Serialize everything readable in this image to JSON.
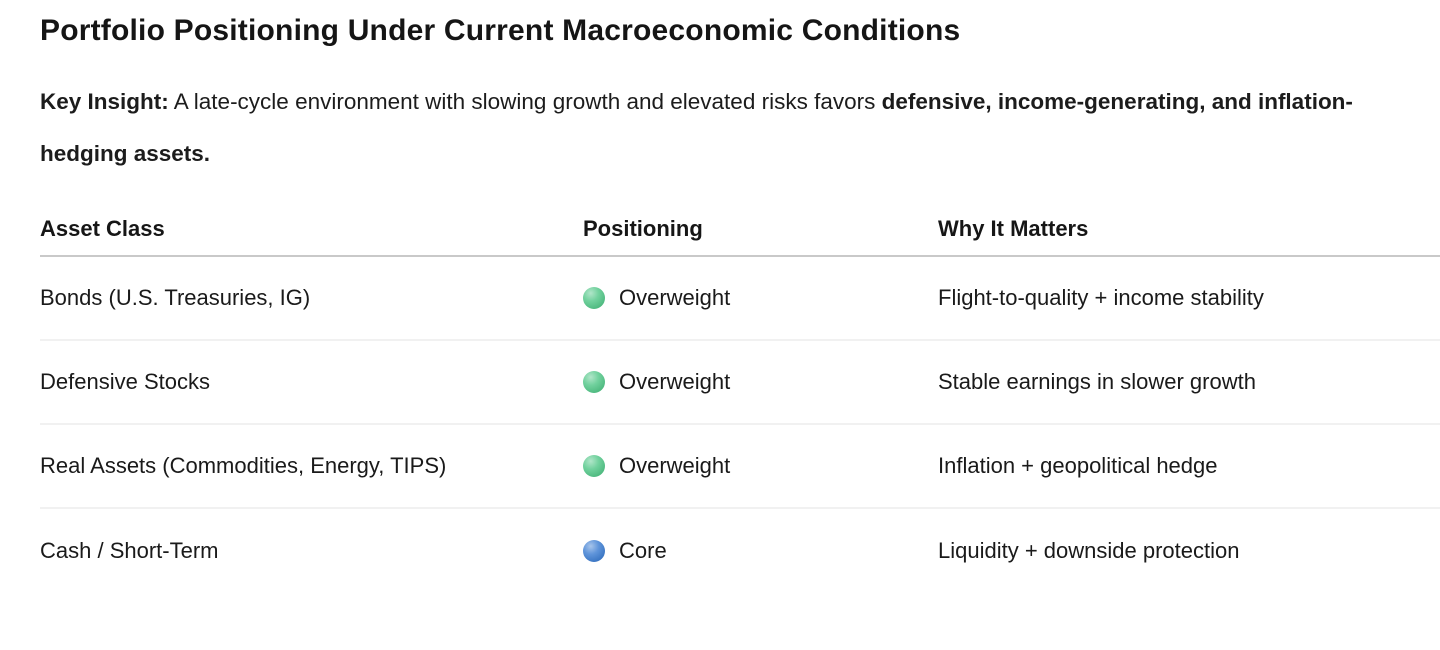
{
  "page": {
    "title": "Portfolio Positioning Under Current Macroeconomic Conditions",
    "key_insight": {
      "label_bold": "Key Insight:",
      "text_normal": " A late-cycle environment with slowing growth and elevated risks favors ",
      "text_bold": "defensive, income-generating, and inflation-hedging assets."
    }
  },
  "table": {
    "columns": [
      "Asset Class",
      "Positioning",
      "Why It Matters"
    ],
    "rows": [
      {
        "asset_class": "Bonds (U.S. Treasuries, IG)",
        "positioning": "Overweight",
        "dot_color": "#52c788",
        "why_it_matters": "Flight-to-quality + income stability"
      },
      {
        "asset_class": "Defensive Stocks",
        "positioning": "Overweight",
        "dot_color": "#52c788",
        "why_it_matters": "Stable earnings in slower growth"
      },
      {
        "asset_class": "Real Assets (Commodities, Energy, TIPS)",
        "positioning": "Overweight",
        "dot_color": "#52c788",
        "why_it_matters": "Inflation + geopolitical hedge"
      },
      {
        "asset_class": "Cash / Short-Term",
        "positioning": "Core",
        "dot_color": "#3c7dd2",
        "why_it_matters": "Liquidity + downside protection"
      }
    ],
    "colors": {
      "overweight_dot": "#52c788",
      "core_dot": "#3c7dd2",
      "header_rule": "#c9c9c9",
      "row_rule": "#f1f1f1"
    }
  }
}
